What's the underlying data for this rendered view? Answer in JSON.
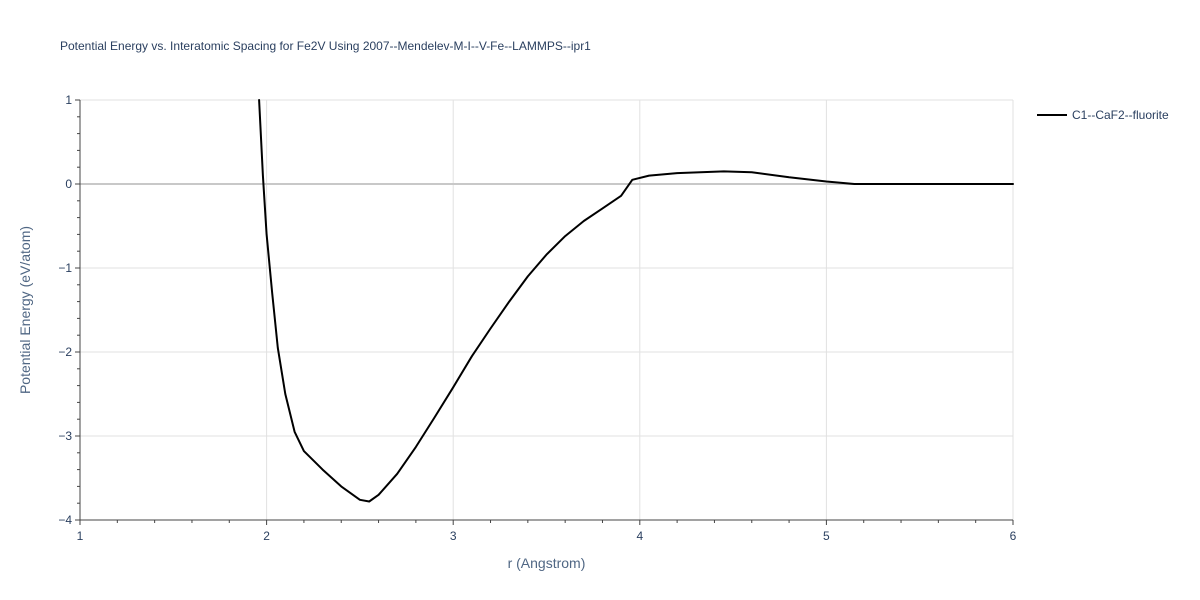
{
  "chart_data": {
    "type": "line",
    "title": "Potential Energy vs. Interatomic Spacing for Fe2V Using 2007--Mendelev-M-I--V-Fe--LAMMPS--ipr1",
    "xlabel": "r (Angstrom)",
    "ylabel": "Potential Energy (eV/atom)",
    "xlim": [
      1,
      6
    ],
    "ylim": [
      -4,
      1
    ],
    "x_ticks": [
      1,
      2,
      3,
      4,
      5,
      6
    ],
    "y_ticks": [
      1,
      0,
      -1,
      -2,
      -3,
      -4
    ],
    "x_tick_labels": [
      "1",
      "2",
      "3",
      "4",
      "5",
      "6"
    ],
    "y_tick_labels": [
      "1",
      "0",
      "−1",
      "−2",
      "−3",
      "−4"
    ],
    "grid": true,
    "legend_position": "top-right",
    "series": [
      {
        "name": "C1--CaF2--fluorite",
        "color": "#000000",
        "x": [
          1.96,
          1.98,
          2.0,
          2.03,
          2.06,
          2.1,
          2.15,
          2.2,
          2.3,
          2.4,
          2.5,
          2.55,
          2.6,
          2.7,
          2.8,
          2.9,
          3.0,
          3.1,
          3.2,
          3.3,
          3.4,
          3.5,
          3.6,
          3.7,
          3.8,
          3.9,
          3.96,
          4.05,
          4.2,
          4.45,
          4.6,
          4.8,
          5.0,
          5.15,
          5.5,
          6.0
        ],
        "y": [
          1.0,
          0.1,
          -0.6,
          -1.3,
          -1.95,
          -2.5,
          -2.95,
          -3.18,
          -3.4,
          -3.6,
          -3.76,
          -3.78,
          -3.7,
          -3.45,
          -3.13,
          -2.78,
          -2.42,
          -2.05,
          -1.72,
          -1.4,
          -1.1,
          -0.84,
          -0.62,
          -0.44,
          -0.29,
          -0.14,
          0.05,
          0.1,
          0.13,
          0.15,
          0.14,
          0.08,
          0.03,
          0.0,
          0.0,
          0.0
        ]
      }
    ]
  }
}
